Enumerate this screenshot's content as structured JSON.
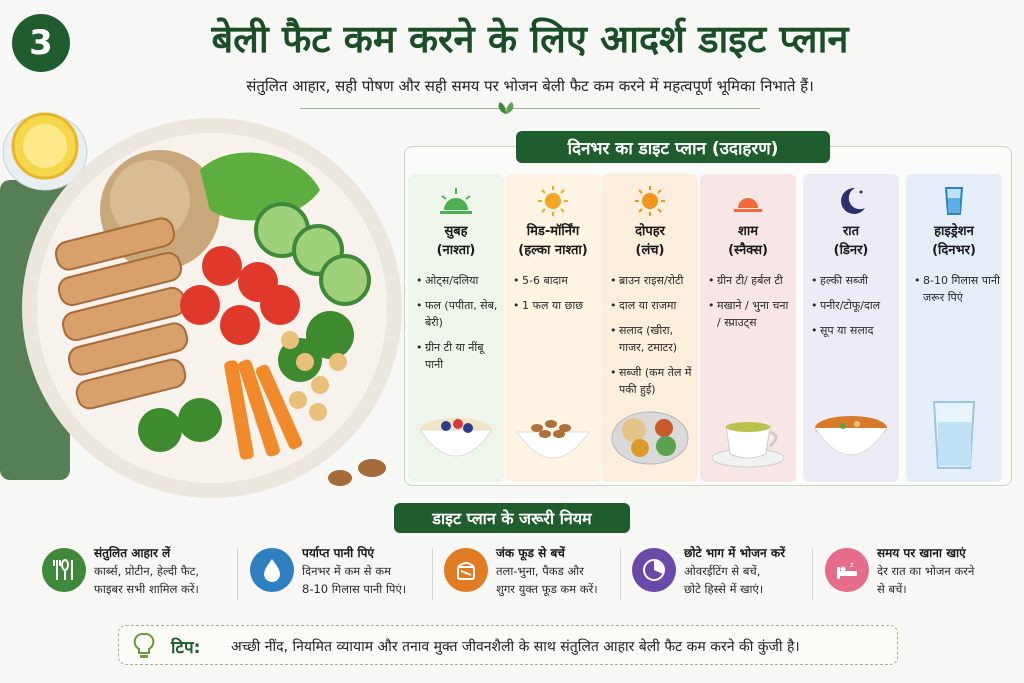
{
  "header": {
    "step_number": "3",
    "title": "बेली फैट कम करने के लिए आदर्श डाइट प्लान",
    "subtitle": "संतुलित आहार, सही पोषण और सही समय पर भोजन बेली फैट कम करने में महत्वपूर्ण भूमिका निभाते हैं।"
  },
  "plan": {
    "heading": "दिनभर का डाइट प्लान (उदाहरण)",
    "columns": [
      {
        "title_line1": "सुबह",
        "title_line2": "(नाश्ता)",
        "icon": "sunrise-icon",
        "bg": "#eef5ea",
        "items": [
          "ओट्स/दलिया",
          "फल (पपीता, सेब, बेरी)",
          "ग्रीन टी या नींबू पानी"
        ]
      },
      {
        "title_line1": "मिड-मॉर्निंग",
        "title_line2": "(हल्का नाश्ता)",
        "icon": "sun-icon",
        "bg": "#fdf4e4",
        "items": [
          "5-6 बादाम",
          "1 फल या छाछ"
        ]
      },
      {
        "title_line1": "दोपहर",
        "title_line2": "(लंच)",
        "icon": "sun-icon",
        "bg": "#fbeedd",
        "items": [
          "ब्राउन राइस/रोटी",
          "दाल या राजमा",
          "सलाद (खीरा, गाजर, टमाटर)",
          "सब्जी (कम तेल में पकी हुई)"
        ]
      },
      {
        "title_line1": "शाम",
        "title_line2": "(स्नैक्स)",
        "icon": "sunset-icon",
        "bg": "#f8e6e6",
        "items": [
          "ग्रीन टी/ हर्बल टी",
          "मखाने / भुना चना / स्प्राउट्स"
        ]
      },
      {
        "title_line1": "रात",
        "title_line2": "(डिनर)",
        "icon": "moon-icon",
        "bg": "#ecebf6",
        "items": [
          "हल्की सब्जी",
          "पनीर/टोफू/दाल",
          "सूप या सलाद"
        ]
      },
      {
        "title_line1": "हाइड्रेशन",
        "title_line2": "(दिनभर)",
        "icon": "water-glass-icon",
        "bg": "#e5eef8",
        "items": [
          "8-10 गिलास पानी जरूर पिएं"
        ]
      }
    ]
  },
  "rules": {
    "heading": "डाइट प्लान के जरूरी नियम",
    "items": [
      {
        "title": "संतुलित आहार लें",
        "line1": "कार्ब्स, प्रोटीन, हेल्दी फैट,",
        "line2": "फाइबर सभी शामिल करें।",
        "icon": "cutlery-icon",
        "color": "#3f8a3a"
      },
      {
        "title": "पर्याप्त पानी पिएं",
        "line1": "दिनभर में कम से कम",
        "line2": "8-10 गिलास पानी पिएं।",
        "icon": "water-drop-icon",
        "color": "#2f7fc1"
      },
      {
        "title": "जंक फूड से बचें",
        "line1": "तला-भुना, पैकड और",
        "line2": "शुगर युक्त फूड कम करें।",
        "icon": "junk-food-icon",
        "color": "#e07b22"
      },
      {
        "title": "छोटे भाग में भोजन करें",
        "line1": "ओवरईटिंग से बचें,",
        "line2": "छोटे हिस्से में खाएं।",
        "icon": "plate-portion-icon",
        "color": "#6a4aa8"
      },
      {
        "title": "समय पर खाना खाएं",
        "line1": "देर रात का भोजन करने",
        "line2": "से बचें।",
        "icon": "sleep-bed-icon",
        "color": "#e56d8a"
      }
    ]
  },
  "tip": {
    "label": "टिप:",
    "text": "अच्छी नींद, नियमित व्यायाम और तनाव मुक्त जीवनशैली के साथ संतुलित आहार बेली फैट कम करने की कुंजी है।",
    "icon": "lightbulb-icon"
  }
}
